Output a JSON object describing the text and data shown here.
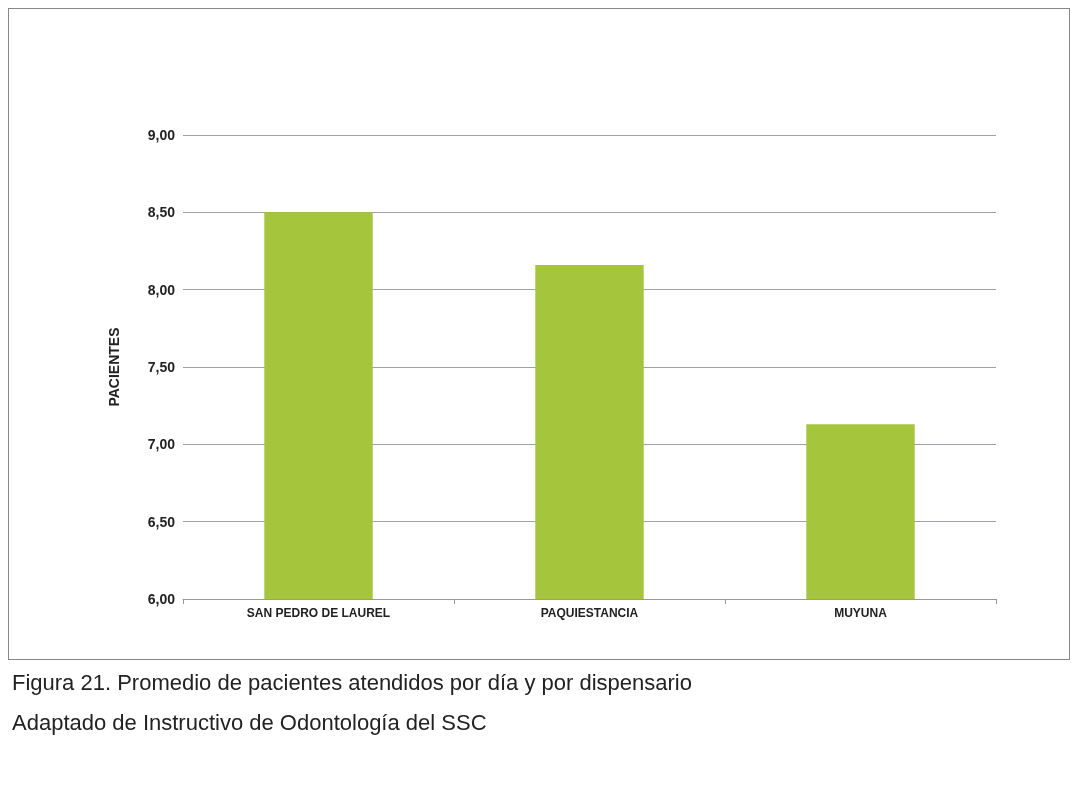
{
  "chart_data": {
    "type": "bar",
    "ylabel": "PACIENTES",
    "categories": [
      "SAN PEDRO DE LAUREL",
      "PAQUIESTANCIA",
      "MUYUNA"
    ],
    "values": [
      8.5,
      8.16,
      7.13
    ],
    "color": "#a5c53c",
    "ylim": [
      6,
      9
    ],
    "yticks": [
      {
        "value": 6,
        "label": "6,00"
      },
      {
        "value": 6.5,
        "label": "6,50"
      },
      {
        "value": 7,
        "label": "7,00"
      },
      {
        "value": 7.5,
        "label": "7,50"
      },
      {
        "value": 8,
        "label": "8,00"
      },
      {
        "value": 8.5,
        "label": "8,50"
      },
      {
        "value": 9,
        "label": "9,00"
      }
    ],
    "grid": "y",
    "annotations": [
      "Figura 21. Promedio de pacientes atendidos por día y por dispensario",
      "Adaptado de Instructivo de Odontología del SSC"
    ]
  }
}
